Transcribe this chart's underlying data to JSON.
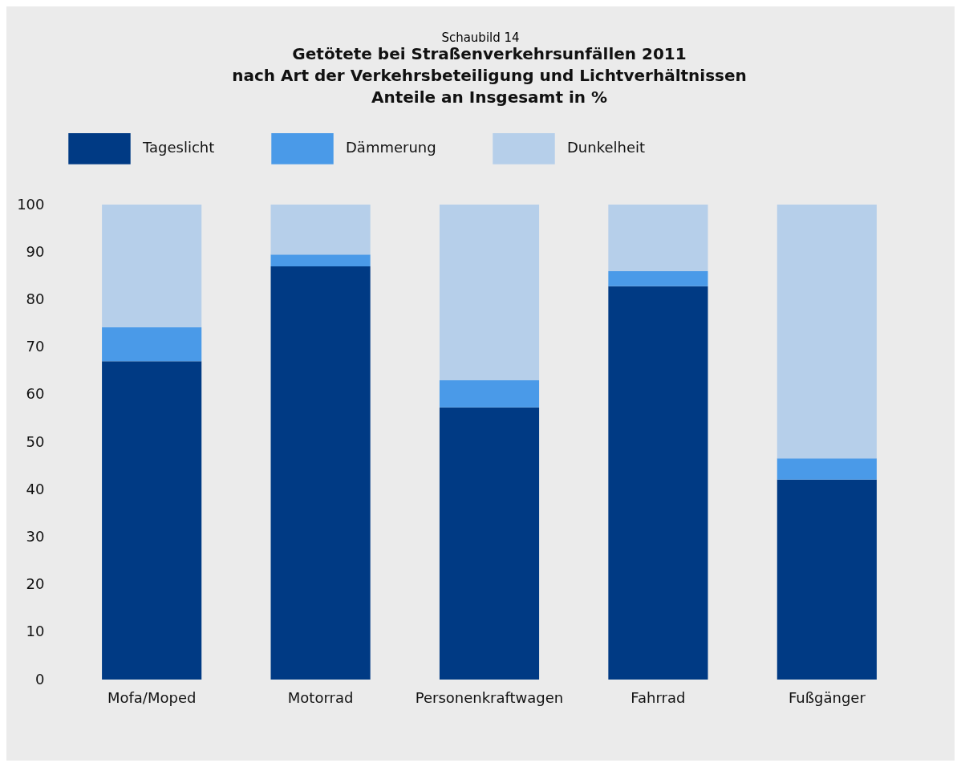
{
  "chart_data": {
    "type": "bar",
    "stacked": true,
    "title": "Getötete bei Straßenverkehrsunfällen 2011\nnach Art der Verkehrsbeteiligung und Lichtverhältnissen\nAnteile an Insgesamt in %",
    "annotations": [
      "Schaubild 14"
    ],
    "categories": [
      "Mofa/Moped",
      "Motorrad",
      "Personenkraftwagen",
      "Fahrrad",
      "Fußgänger"
    ],
    "series": [
      {
        "name": "Tageslicht",
        "color": "#003a84",
        "values": [
          67,
          87,
          57.3,
          82.8,
          42.1
        ]
      },
      {
        "name": "Dämmerung",
        "color": "#4a9ae8",
        "values": [
          7.2,
          2.5,
          5.7,
          3.2,
          4.5
        ]
      },
      {
        "name": "Dunkelheit",
        "color": "#b6cfea",
        "values": [
          25.8,
          10.5,
          37,
          14,
          53.4
        ]
      }
    ],
    "ylim": [
      0,
      100
    ],
    "yticks": [
      0,
      10,
      20,
      30,
      40,
      50,
      60,
      70,
      80,
      90,
      100
    ],
    "grid": false,
    "legend": "top"
  }
}
